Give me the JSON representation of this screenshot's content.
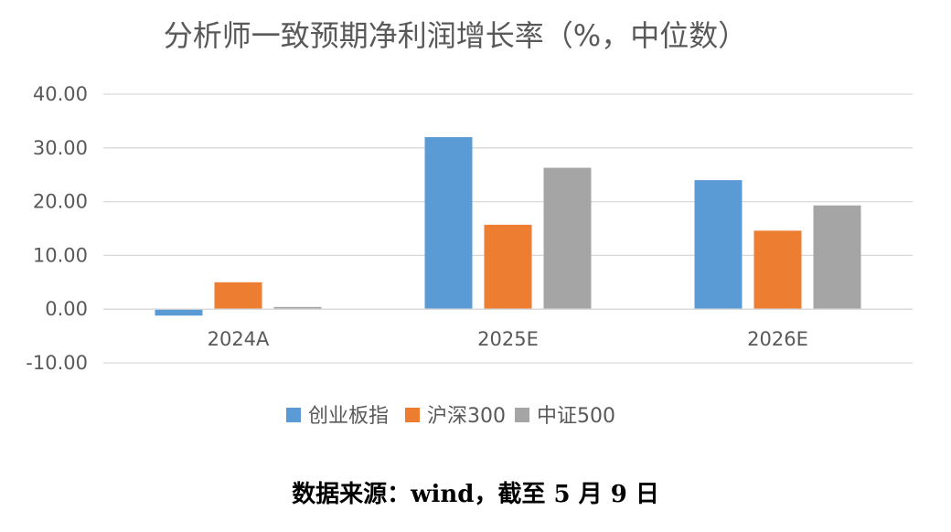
{
  "chart_data": {
    "type": "bar",
    "title": "分析师一致预期净利润增长率（%，中位数）",
    "categories": [
      "2024A",
      "2025E",
      "2026E"
    ],
    "series": [
      {
        "name": "创业板指",
        "color": "#5B9BD5",
        "values": [
          -1.2,
          32.0,
          24.0
        ]
      },
      {
        "name": "沪深300",
        "color": "#ED7D31",
        "values": [
          5.0,
          15.7,
          14.6
        ]
      },
      {
        "name": "中证500",
        "color": "#A5A5A5",
        "values": [
          0.4,
          26.3,
          19.3
        ]
      }
    ],
    "ylim": [
      -10,
      40
    ],
    "yticks": [
      40,
      30,
      20,
      10,
      0,
      -10
    ],
    "ytick_labels": [
      "40.00",
      "30.00",
      "20.00",
      "10.00",
      "0.00",
      "-10.00"
    ],
    "grid": true,
    "legend_position": "bottom",
    "xlabel": "",
    "ylabel": ""
  },
  "source_note": "数据来源：wind，截至 5 月 9 日"
}
